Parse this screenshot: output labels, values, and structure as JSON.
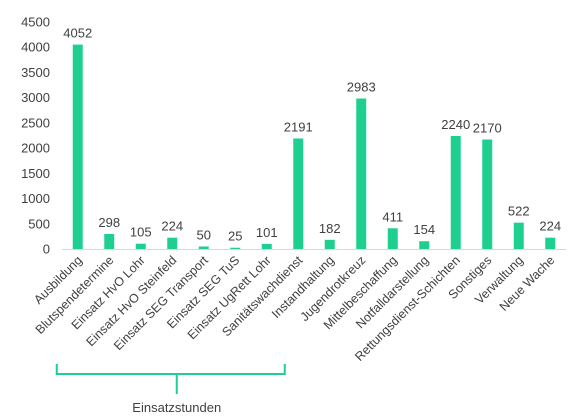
{
  "chart_data": {
    "type": "bar",
    "title": "",
    "xlabel": "",
    "ylabel": "",
    "ylim": [
      0,
      4500
    ],
    "yticks": [
      0,
      500,
      1000,
      1500,
      2000,
      2500,
      3000,
      3500,
      4000,
      4500
    ],
    "grid": false,
    "categories": [
      "Ausbildung",
      "Blutspendetermine",
      "Einsatz HvO Lohr",
      "Einsatz HvO Steinfeld",
      "Einsatz SEG Transport",
      "Einsatz SEG TuS",
      "Einsatz UgRett Lohr",
      "Sanitätswachdienst",
      "Instandhaltung",
      "Jugendrotkreuz",
      "Mittelbeschaffung",
      "Notfalldarstellung",
      "Rettungsdienst-Schichten",
      "Sonstiges",
      "Verwaltung",
      "Neue Wache"
    ],
    "values": [
      4052,
      298,
      105,
      224,
      50,
      25,
      101,
      2191,
      182,
      2983,
      411,
      154,
      2240,
      2170,
      522,
      224
    ],
    "bar_color": "#1ecf8f",
    "annotation": {
      "label": "Einsatzstunden",
      "bracket_from_category": 0,
      "bracket_to_category": 6,
      "color": "#1ecf8f"
    }
  }
}
